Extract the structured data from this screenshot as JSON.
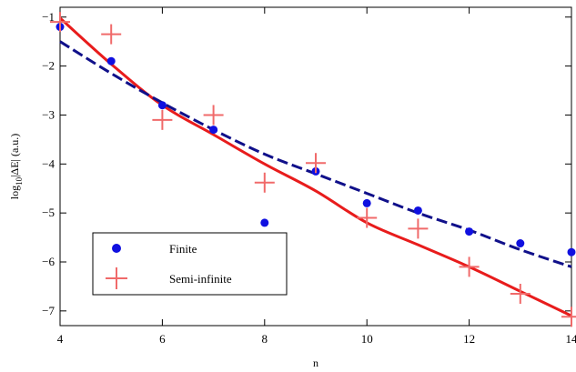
{
  "chart_data": {
    "type": "scatter",
    "xlabel": "n",
    "ylabel_main": "log",
    "ylabel_sub": "10",
    "ylabel_rest": "|ΔE| (a.u.)",
    "xlim": [
      4,
      14
    ],
    "ylim": [
      -7.3,
      -0.8
    ],
    "xticks": [
      4,
      6,
      8,
      10,
      12,
      14
    ],
    "yticks": [
      -1,
      -2,
      -3,
      -4,
      -5,
      -6,
      -7
    ],
    "grid": false,
    "legend_position": "bottom-left",
    "series": [
      {
        "name": "Finite",
        "kind": "points",
        "marker": "circle",
        "color": "#1010e0",
        "x": [
          4,
          5,
          6,
          7,
          8,
          9,
          10,
          11,
          12,
          13,
          14
        ],
        "y": [
          -1.2,
          -1.9,
          -2.8,
          -3.3,
          -5.2,
          -4.15,
          -4.8,
          -4.95,
          -5.38,
          -5.62,
          -5.8
        ]
      },
      {
        "name": "Semi-infinite",
        "kind": "points",
        "marker": "plus",
        "color": "#f06a6a",
        "x": [
          4,
          5,
          6,
          7,
          8,
          9,
          10,
          11,
          12,
          13,
          14
        ],
        "y": [
          -1.1,
          -1.35,
          -3.1,
          -3.0,
          -4.38,
          -3.98,
          -5.1,
          -5.32,
          -6.1,
          -6.65,
          -7.12
        ]
      }
    ],
    "fits": [
      {
        "kind": "curve",
        "style": "solid",
        "color": "#e81c1c",
        "x": [
          4,
          5,
          6,
          7,
          8,
          9,
          10,
          11,
          12,
          13,
          14
        ],
        "y": [
          -1.02,
          -1.96,
          -2.8,
          -3.4,
          -4.0,
          -4.55,
          -5.2,
          -5.65,
          -6.1,
          -6.6,
          -7.1
        ]
      },
      {
        "kind": "curve",
        "style": "dashed",
        "color": "#10108a",
        "x": [
          4,
          5,
          6,
          7,
          8,
          9,
          10,
          11,
          12,
          13,
          14
        ],
        "y": [
          -1.5,
          -2.15,
          -2.75,
          -3.3,
          -3.8,
          -4.2,
          -4.6,
          -5.0,
          -5.35,
          -5.75,
          -6.1
        ]
      }
    ]
  }
}
